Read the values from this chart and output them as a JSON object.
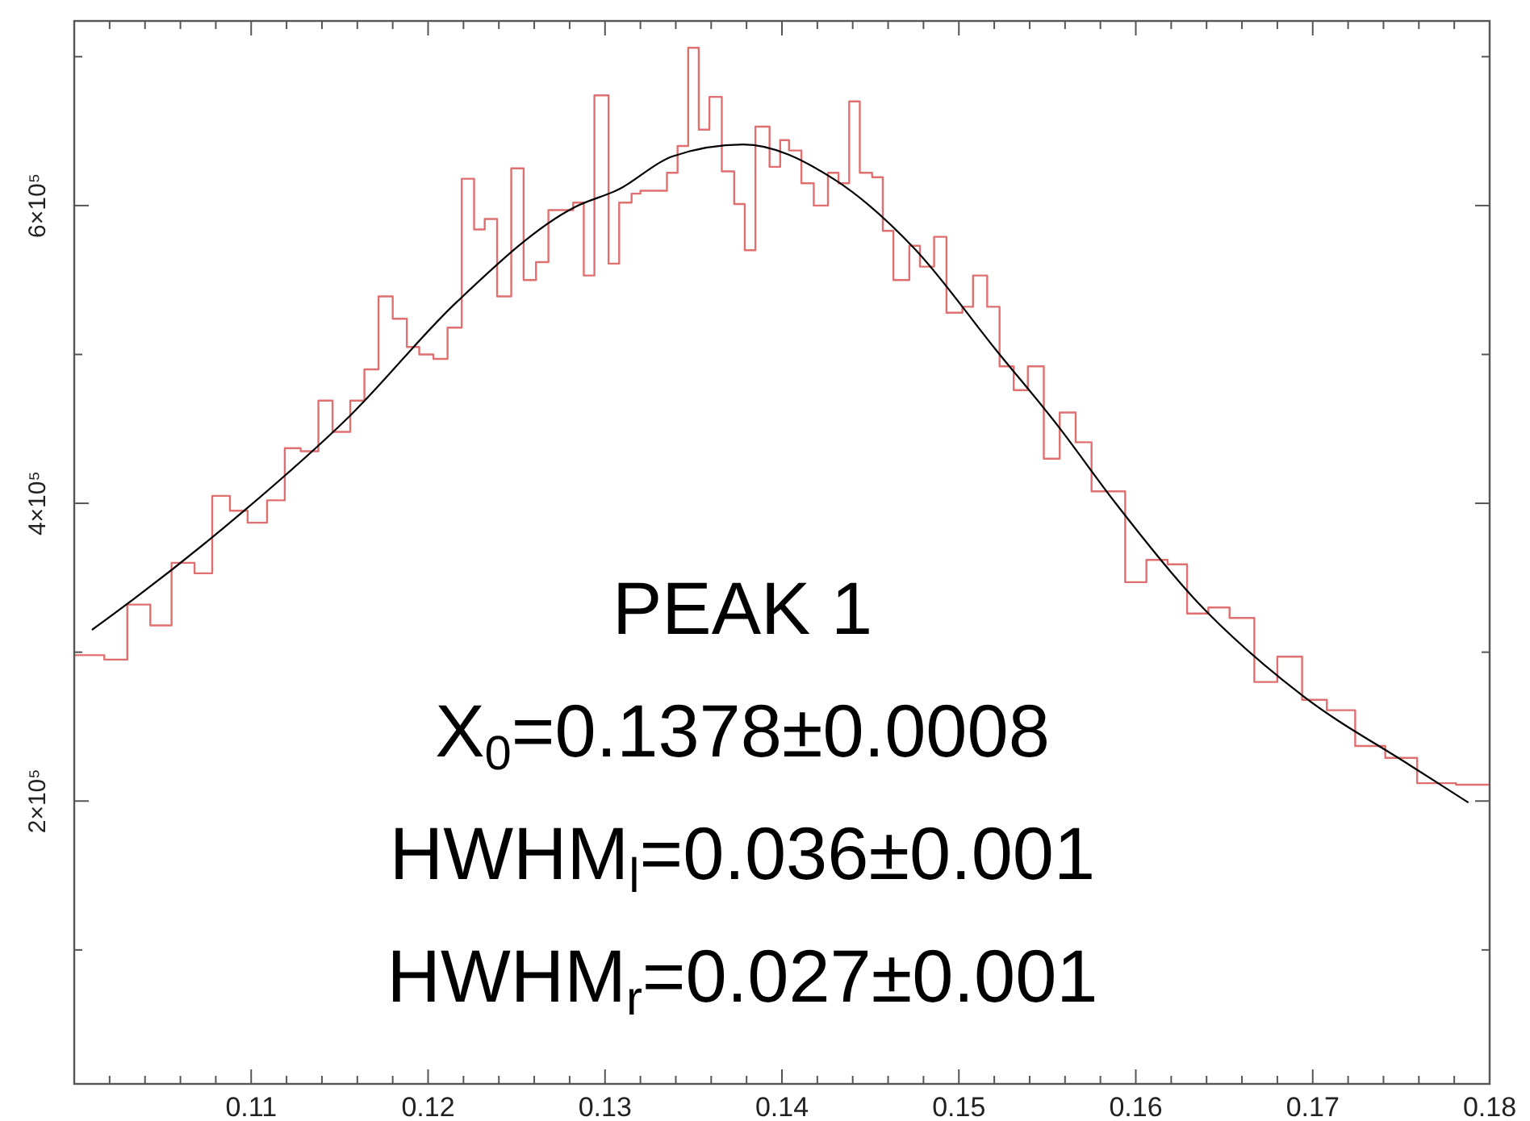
{
  "chart_data": {
    "type": "step",
    "xlim": [
      0.1,
      0.18
    ],
    "ylim": [
      10000,
      724000
    ],
    "xticks": [
      {
        "value": 0.102,
        "label": null
      },
      {
        "value": 0.104,
        "label": null
      },
      {
        "value": 0.106,
        "label": null
      },
      {
        "value": 0.108,
        "label": null
      },
      {
        "value": 0.11,
        "label": "0.11"
      },
      {
        "value": 0.112,
        "label": null
      },
      {
        "value": 0.114,
        "label": null
      },
      {
        "value": 0.116,
        "label": null
      },
      {
        "value": 0.118,
        "label": null
      },
      {
        "value": 0.12,
        "label": "0.12"
      },
      {
        "value": 0.122,
        "label": null
      },
      {
        "value": 0.124,
        "label": null
      },
      {
        "value": 0.126,
        "label": null
      },
      {
        "value": 0.128,
        "label": null
      },
      {
        "value": 0.13,
        "label": "0.13"
      },
      {
        "value": 0.132,
        "label": null
      },
      {
        "value": 0.134,
        "label": null
      },
      {
        "value": 0.136,
        "label": null
      },
      {
        "value": 0.138,
        "label": null
      },
      {
        "value": 0.14,
        "label": "0.14"
      },
      {
        "value": 0.142,
        "label": null
      },
      {
        "value": 0.144,
        "label": null
      },
      {
        "value": 0.146,
        "label": null
      },
      {
        "value": 0.148,
        "label": null
      },
      {
        "value": 0.15,
        "label": "0.15"
      },
      {
        "value": 0.152,
        "label": null
      },
      {
        "value": 0.154,
        "label": null
      },
      {
        "value": 0.156,
        "label": null
      },
      {
        "value": 0.158,
        "label": null
      },
      {
        "value": 0.16,
        "label": "0.16"
      },
      {
        "value": 0.162,
        "label": null
      },
      {
        "value": 0.164,
        "label": null
      },
      {
        "value": 0.166,
        "label": null
      },
      {
        "value": 0.168,
        "label": null
      },
      {
        "value": 0.17,
        "label": "0.17"
      },
      {
        "value": 0.172,
        "label": null
      },
      {
        "value": 0.174,
        "label": null
      },
      {
        "value": 0.176,
        "label": null
      },
      {
        "value": 0.178,
        "label": null
      },
      {
        "value": 0.18,
        "label": "0.18"
      }
    ],
    "yticks": [
      {
        "value": 100000,
        "label": null
      },
      {
        "value": 200000,
        "label": "2×10⁵"
      },
      {
        "value": 300000,
        "label": null
      },
      {
        "value": 400000,
        "label": "4×10⁵"
      },
      {
        "value": 500000,
        "label": null
      },
      {
        "value": 600000,
        "label": "6×10⁵"
      },
      {
        "value": 700000,
        "label": null
      }
    ],
    "series": [
      {
        "color": "#e07070",
        "x": [
          0.1,
          0.1017,
          0.103,
          0.1043,
          0.1055,
          0.1068,
          0.1078,
          0.1088,
          0.1098,
          0.1109,
          0.1119,
          0.1128,
          0.1138,
          0.1146,
          0.1156,
          0.1164,
          0.1172,
          0.118,
          0.1188,
          0.1195,
          0.1203,
          0.1211,
          0.1219,
          0.1226,
          0.1232,
          0.1239,
          0.1247,
          0.1254,
          0.1261,
          0.1268,
          0.1282,
          0.1288,
          0.1294,
          0.1302,
          0.1308,
          0.1315,
          0.132,
          0.1335,
          0.1341,
          0.1347,
          0.1353,
          0.1359,
          0.1366,
          0.1373,
          0.1379,
          0.1385,
          0.1393,
          0.1399,
          0.1404,
          0.1411,
          0.1418,
          0.1426,
          0.1432,
          0.1438,
          0.1444,
          0.1451,
          0.1457,
          0.1463,
          0.1472,
          0.1478,
          0.1486,
          0.1493,
          0.1502,
          0.1508,
          0.1516,
          0.1523,
          0.1531,
          0.1539,
          0.1548,
          0.1557,
          0.1566,
          0.1575,
          0.1594,
          0.1606,
          0.1618,
          0.1629,
          0.1641,
          0.1653,
          0.1667,
          0.168,
          0.1694,
          0.1708,
          0.1724,
          0.1741,
          0.1759,
          0.1781,
          0.18
        ],
        "values": [
          298000,
          295000,
          332000,
          318000,
          360000,
          353000,
          405000,
          395000,
          387000,
          402000,
          437000,
          435000,
          469000,
          448000,
          469000,
          490000,
          539000,
          524000,
          505000,
          500000,
          497000,
          518000,
          618000,
          584000,
          591000,
          539000,
          625000,
          550000,
          562000,
          597000,
          602000,
          553000,
          674000,
          561000,
          602000,
          608000,
          610000,
          622000,
          640000,
          706000,
          651000,
          673000,
          623000,
          601000,
          570000,
          653000,
          626000,
          644000,
          637000,
          615000,
          600000,
          622000,
          615000,
          670000,
          622000,
          619000,
          583000,
          550000,
          573000,
          559000,
          579000,
          528000,
          532000,
          553000,
          532000,
          492000,
          476000,
          492000,
          430000,
          461000,
          441000,
          408000,
          347000,
          362000,
          359000,
          326000,
          330000,
          323000,
          280000,
          297000,
          268000,
          261000,
          237000,
          229000,
          212000,
          211000,
          211000
        ]
      },
      {
        "type": "line",
        "color": "#000000",
        "x": [
          0.101,
          0.1034,
          0.1095,
          0.1156,
          0.1216,
          0.1283,
          0.1308,
          0.1338,
          0.1378,
          0.1429,
          0.1475,
          0.1521,
          0.1556,
          0.1588,
          0.1633,
          0.1694,
          0.1755,
          0.1788
        ],
        "values": [
          315000,
          336000,
          394000,
          459000,
          535000,
          599000,
          611000,
          633000,
          641000,
          618000,
          571000,
          503000,
          452000,
          401000,
          336000,
          271000,
          224000,
          199000
        ]
      }
    ],
    "annotations": [
      "PEAK 1",
      "X$_{0}$=0.1378±0.0008",
      "HWHM$_{l}$=0.036±0.001",
      "HWHM$_{r}$=0.027±0.001"
    ]
  }
}
